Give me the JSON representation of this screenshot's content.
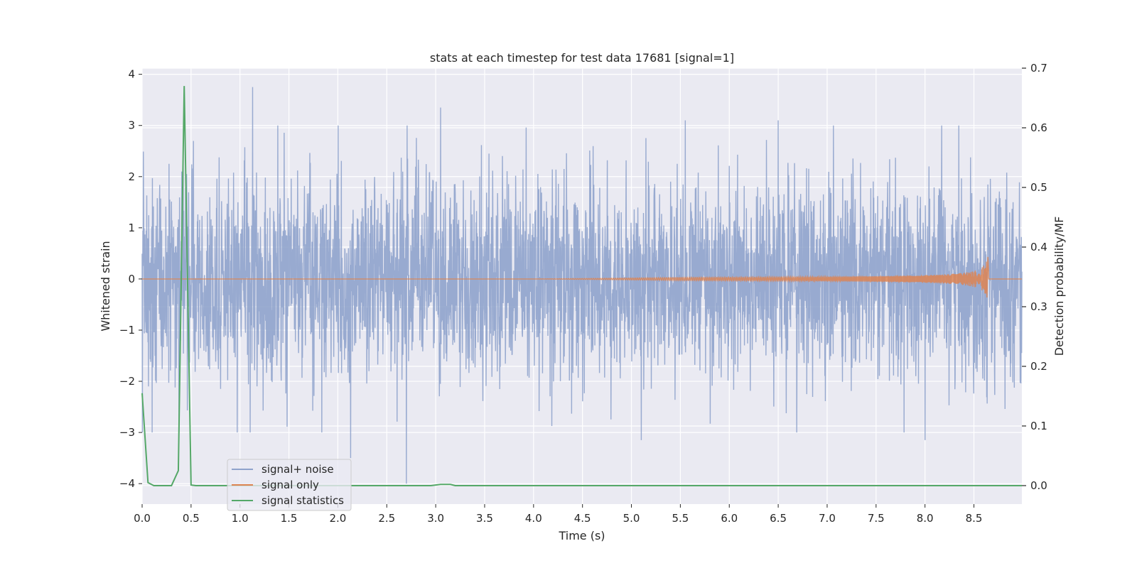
{
  "chart_data": {
    "type": "line",
    "title": "stats at each timestep for test data 17681 [signal=1]",
    "xlabel": "Time (s)",
    "ylabel": "Whitened strain",
    "y2label": "Detection probability/MF",
    "xlim": [
      0,
      8.99
    ],
    "ylim": [
      -4.4,
      4.12
    ],
    "y2lim": [
      -0.031,
      0.7
    ],
    "xticks": [
      "0.0",
      "0.5",
      "1.0",
      "1.5",
      "2.0",
      "2.5",
      "3.0",
      "3.5",
      "4.0",
      "4.5",
      "5.0",
      "5.5",
      "6.0",
      "6.5",
      "7.0",
      "7.5",
      "8.0",
      "8.5"
    ],
    "xtick_values": [
      0,
      0.5,
      1,
      1.5,
      2,
      2.5,
      3,
      3.5,
      4,
      4.5,
      5,
      5.5,
      6,
      6.5,
      7,
      7.5,
      8,
      8.5
    ],
    "yticks": [
      "−4",
      "−3",
      "−2",
      "−1",
      "0",
      "1",
      "2",
      "3",
      "4"
    ],
    "ytick_values": [
      -4,
      -3,
      -2,
      -1,
      0,
      1,
      2,
      3,
      4
    ],
    "y2ticks": [
      "0.0",
      "0.1",
      "0.2",
      "0.3",
      "0.4",
      "0.5",
      "0.6",
      "0.7"
    ],
    "y2tick_values": [
      0,
      0.1,
      0.2,
      0.3,
      0.4,
      0.5,
      0.6,
      0.7
    ],
    "grid": true,
    "legend_position": "lower-left",
    "colors": {
      "background": "#eaeaf2",
      "noise": "#8fa3cc",
      "signal": "#dd8452",
      "stats": "#55a868",
      "grid": "#ffffff"
    },
    "series": [
      {
        "name": "signal+ noise",
        "axis": "left",
        "description_range": [
          -3.6,
          3.7
        ],
        "typical_envelope": [
          -1.8,
          1.8
        ],
        "notable_peaks": [
          {
            "x": 0.42,
            "y": 2.55
          },
          {
            "x": 1.13,
            "y": 3.75
          },
          {
            "x": 2.13,
            "y": -3.5
          },
          {
            "x": 2.7,
            "y": -4.0
          },
          {
            "x": 3.05,
            "y": 3.35
          },
          {
            "x": 5.1,
            "y": -3.15
          },
          {
            "x": 5.55,
            "y": 3.1
          },
          {
            "x": 6.5,
            "y": 3.1
          },
          {
            "x": 8.0,
            "y": -3.15
          }
        ]
      },
      {
        "name": "signal only",
        "axis": "left",
        "chirp_start": 4.0,
        "merger_time": 8.65,
        "merger_amplitude": 0.65
      },
      {
        "name": "signal statistics",
        "axis": "right",
        "x": [
          0.0,
          0.06,
          0.12,
          0.3,
          0.37,
          0.43,
          0.5,
          0.55,
          2.95,
          3.05,
          3.15,
          3.2,
          8.99
        ],
        "y": [
          0.155,
          0.005,
          0.0,
          0.0,
          0.025,
          0.67,
          0.001,
          0.0,
          0.0,
          0.002,
          0.002,
          0.0,
          0.0
        ]
      }
    ]
  }
}
